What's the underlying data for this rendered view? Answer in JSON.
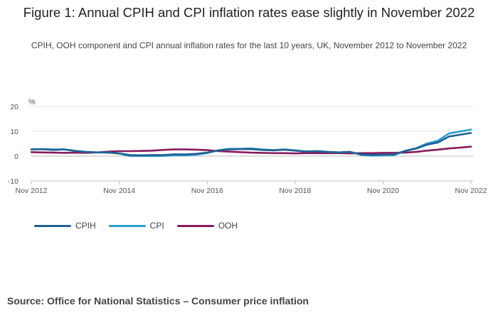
{
  "title": "Figure 1: Annual CPIH and CPI inflation rates ease slightly in November 2022",
  "subtitle": "CPIH, OOH component and CPI annual inflation rates for the last 10 years, UK, November 2012 to November 2022",
  "source": "Source: Office for National Statistics – Consumer price inflation",
  "colors": {
    "CPIH": "#206095",
    "CPI": "#27a0cc",
    "OOH": "#871a5b"
  },
  "chart_data": {
    "type": "line",
    "ylabel": "%",
    "ylim": [
      -10,
      20
    ],
    "yticks": [
      -10,
      0,
      10,
      20
    ],
    "xlim": [
      "Nov 2012",
      "Nov 2022"
    ],
    "xtick_labels": [
      "Nov 2012",
      "Nov 2014",
      "Nov 2016",
      "Nov 2018",
      "Nov 2020",
      "Nov 2022"
    ],
    "grid": true,
    "legend": "bottom-left",
    "x": [
      "Nov 2012",
      "Feb 2013",
      "May 2013",
      "Aug 2013",
      "Nov 2013",
      "Feb 2014",
      "May 2014",
      "Aug 2014",
      "Nov 2014",
      "Feb 2015",
      "May 2015",
      "Aug 2015",
      "Nov 2015",
      "Feb 2016",
      "May 2016",
      "Aug 2016",
      "Nov 2016",
      "Feb 2017",
      "May 2017",
      "Aug 2017",
      "Nov 2017",
      "Feb 2018",
      "May 2018",
      "Aug 2018",
      "Nov 2018",
      "Feb 2019",
      "May 2019",
      "Aug 2019",
      "Nov 2019",
      "Feb 2020",
      "May 2020",
      "Aug 2020",
      "Nov 2020",
      "Feb 2021",
      "May 2021",
      "Aug 2021",
      "Nov 2021",
      "Feb 2022",
      "May 2022",
      "Aug 2022",
      "Nov 2022"
    ],
    "series": [
      {
        "name": "CPIH",
        "values": [
          2.7,
          2.8,
          2.5,
          2.7,
          2.1,
          1.7,
          1.5,
          1.4,
          1.1,
          0.4,
          0.3,
          0.4,
          0.4,
          0.7,
          0.7,
          0.9,
          1.4,
          2.3,
          2.7,
          2.8,
          2.8,
          2.5,
          2.3,
          2.6,
          2.2,
          1.8,
          2.0,
          1.7,
          1.5,
          1.7,
          0.7,
          0.5,
          0.6,
          0.7,
          2.1,
          3.0,
          4.6,
          5.5,
          7.9,
          8.6,
          9.3
        ]
      },
      {
        "name": "CPI",
        "values": [
          2.7,
          2.8,
          2.7,
          2.7,
          2.1,
          1.7,
          1.5,
          1.5,
          1.0,
          0.0,
          0.1,
          0.0,
          0.1,
          0.3,
          0.3,
          0.6,
          1.2,
          2.3,
          2.9,
          2.9,
          3.1,
          2.7,
          2.4,
          2.7,
          2.3,
          1.9,
          2.0,
          1.7,
          1.5,
          1.7,
          0.5,
          0.2,
          0.3,
          0.4,
          2.1,
          3.2,
          5.1,
          6.2,
          9.1,
          9.9,
          10.7
        ]
      },
      {
        "name": "OOH",
        "values": [
          1.6,
          1.5,
          1.4,
          1.3,
          1.4,
          1.3,
          1.5,
          1.8,
          2.0,
          2.0,
          2.1,
          2.2,
          2.5,
          2.7,
          2.7,
          2.6,
          2.4,
          2.0,
          1.8,
          1.6,
          1.4,
          1.3,
          1.2,
          1.2,
          1.1,
          1.2,
          1.2,
          1.2,
          1.2,
          1.1,
          1.2,
          1.2,
          1.3,
          1.3,
          1.4,
          1.7,
          2.2,
          2.6,
          3.1,
          3.4,
          3.8
        ]
      }
    ]
  }
}
